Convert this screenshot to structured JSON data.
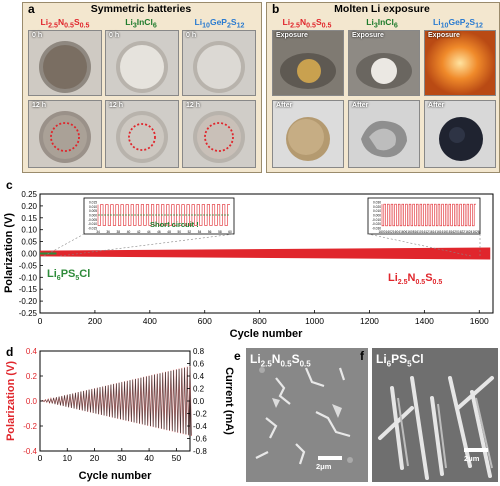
{
  "panel_a": {
    "label": "a",
    "title": "Symmetric batteries",
    "materials": [
      {
        "name": "Li2.5N0.5S0.5",
        "color": "#e0262c"
      },
      {
        "name": "Li3InCl6",
        "color": "#1e7b2c"
      },
      {
        "name": "Li10GeP2S12",
        "color": "#2a7bd0"
      }
    ],
    "time_labels": [
      "0 h",
      "0 h",
      "0 h",
      "12 h",
      "12 h",
      "12 h"
    ]
  },
  "panel_b": {
    "label": "b",
    "title": "Molten Li exposure",
    "materials": [
      {
        "name": "Li2.5N0.5S0.5",
        "color": "#e0262c"
      },
      {
        "name": "Li3InCl6",
        "color": "#1e7b2c"
      },
      {
        "name": "Li10GeP2S12",
        "color": "#2a7bd0"
      }
    ],
    "row_labels": [
      "Exposure",
      "Exposure",
      "Exposure",
      "After",
      "After",
      "After"
    ]
  },
  "panel_c": {
    "label": "c",
    "ylabel": "Polarization (V)",
    "xlabel": "Cycle number",
    "inset_left_text": "Short circuit !",
    "series_labels": {
      "green": "Li6PS5Cl",
      "red": "Li2.5N0.5S0.5"
    }
  },
  "panel_d": {
    "label": "d",
    "ylabel_left": "Polarization (V)",
    "ylabel_right": "Current (mA)",
    "xlabel": "Cycle number"
  },
  "panel_e": {
    "label": "e",
    "material": "Li2.5N0.5S0.5",
    "scale": "2μm"
  },
  "panel_f": {
    "label": "f",
    "material": "Li6PS5Cl",
    "scale": "2μm"
  },
  "chart_data": [
    {
      "type": "line",
      "panel": "c",
      "xlabel": "Cycle number",
      "ylabel": "Polarization (V)",
      "xlim": [
        0,
        1650
      ],
      "ylim": [
        -0.25,
        0.25
      ],
      "x_ticks": [
        0,
        200,
        400,
        600,
        800,
        1000,
        1200,
        1400,
        1600
      ],
      "y_ticks": [
        -0.25,
        -0.2,
        -0.15,
        -0.1,
        -0.05,
        0.0,
        0.05,
        0.1,
        0.15,
        0.2,
        0.25
      ],
      "series": [
        {
          "name": "Li6PS5Cl",
          "color": "#2e8b3a",
          "x": [
            0,
            60
          ],
          "amplitude": [
            0.01,
            0.01
          ]
        },
        {
          "name": "Li2.5N0.5S0.5",
          "color": "#e0262c",
          "x": [
            0,
            1640
          ],
          "amplitude": [
            0.012,
            0.025
          ]
        }
      ]
    },
    {
      "type": "line",
      "panel": "c-inset-left",
      "xlim": [
        34,
        60
      ],
      "ylim": [
        -0.015,
        0.015
      ],
      "x_ticks": [
        34,
        36,
        38,
        40,
        42,
        44,
        46,
        48,
        50,
        52,
        54,
        56,
        58,
        60
      ],
      "y_ticks": [
        -0.015,
        -0.01,
        -0.005,
        0.0,
        0.005,
        0.01,
        0.015
      ],
      "series": [
        {
          "name": "Li2.5N0.5S0.5",
          "color": "#e0262c",
          "amplitude": 0.012
        },
        {
          "name": "Li6PS5Cl",
          "color": "#2e8b3a",
          "level": 0.0
        }
      ]
    },
    {
      "type": "line",
      "panel": "c-inset-right",
      "xlim": [
        1600,
        1626
      ],
      "ylim": [
        -0.03,
        0.03
      ],
      "x_ticks": [
        1600,
        1602,
        1604,
        1606,
        1608,
        1610,
        1612,
        1614,
        1616,
        1618,
        1620,
        1622,
        1624,
        1626
      ],
      "y_ticks": [
        -0.03,
        -0.02,
        -0.01,
        0.0,
        0.01,
        0.02,
        0.03
      ],
      "series": [
        {
          "name": "Li2.5N0.5S0.5",
          "color": "#e0262c",
          "amplitude": 0.025
        }
      ]
    },
    {
      "type": "line",
      "panel": "d",
      "xlabel": "Cycle number",
      "ylabel": "Polarization (V)",
      "y2label": "Current (mA)",
      "xlim": [
        0,
        55
      ],
      "ylim": [
        -0.4,
        0.4
      ],
      "y2lim": [
        -0.8,
        0.8
      ],
      "x_ticks": [
        0,
        10,
        20,
        30,
        40,
        50
      ],
      "y_ticks": [
        -0.4,
        -0.2,
        0.0,
        0.2,
        0.4
      ],
      "y2_ticks": [
        -0.8,
        -0.6,
        -0.4,
        -0.2,
        0.0,
        0.2,
        0.4,
        0.6,
        0.8
      ],
      "series": [
        {
          "name": "Polarization",
          "color": "#f08080",
          "amplitude_start": 0.0,
          "amplitude_end": 0.28
        },
        {
          "name": "Current",
          "color": "#333333",
          "amplitude_start": 0.0,
          "amplitude_end": 0.55
        }
      ]
    }
  ]
}
